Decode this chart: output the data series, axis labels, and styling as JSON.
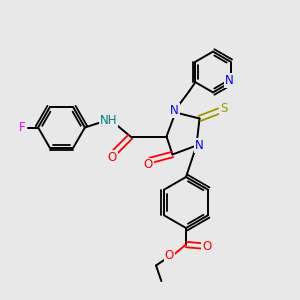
{
  "background_color": "#e8e8e8",
  "figure_size": [
    3.0,
    3.0
  ],
  "dpi": 100,
  "atom_colors": {
    "N": "#0000ff",
    "O": "#ff0000",
    "S": "#999900",
    "F": "#ff00ff",
    "NH": "#008080",
    "C": "#000000"
  },
  "bond_lw": 1.4,
  "font_size": 8.5
}
